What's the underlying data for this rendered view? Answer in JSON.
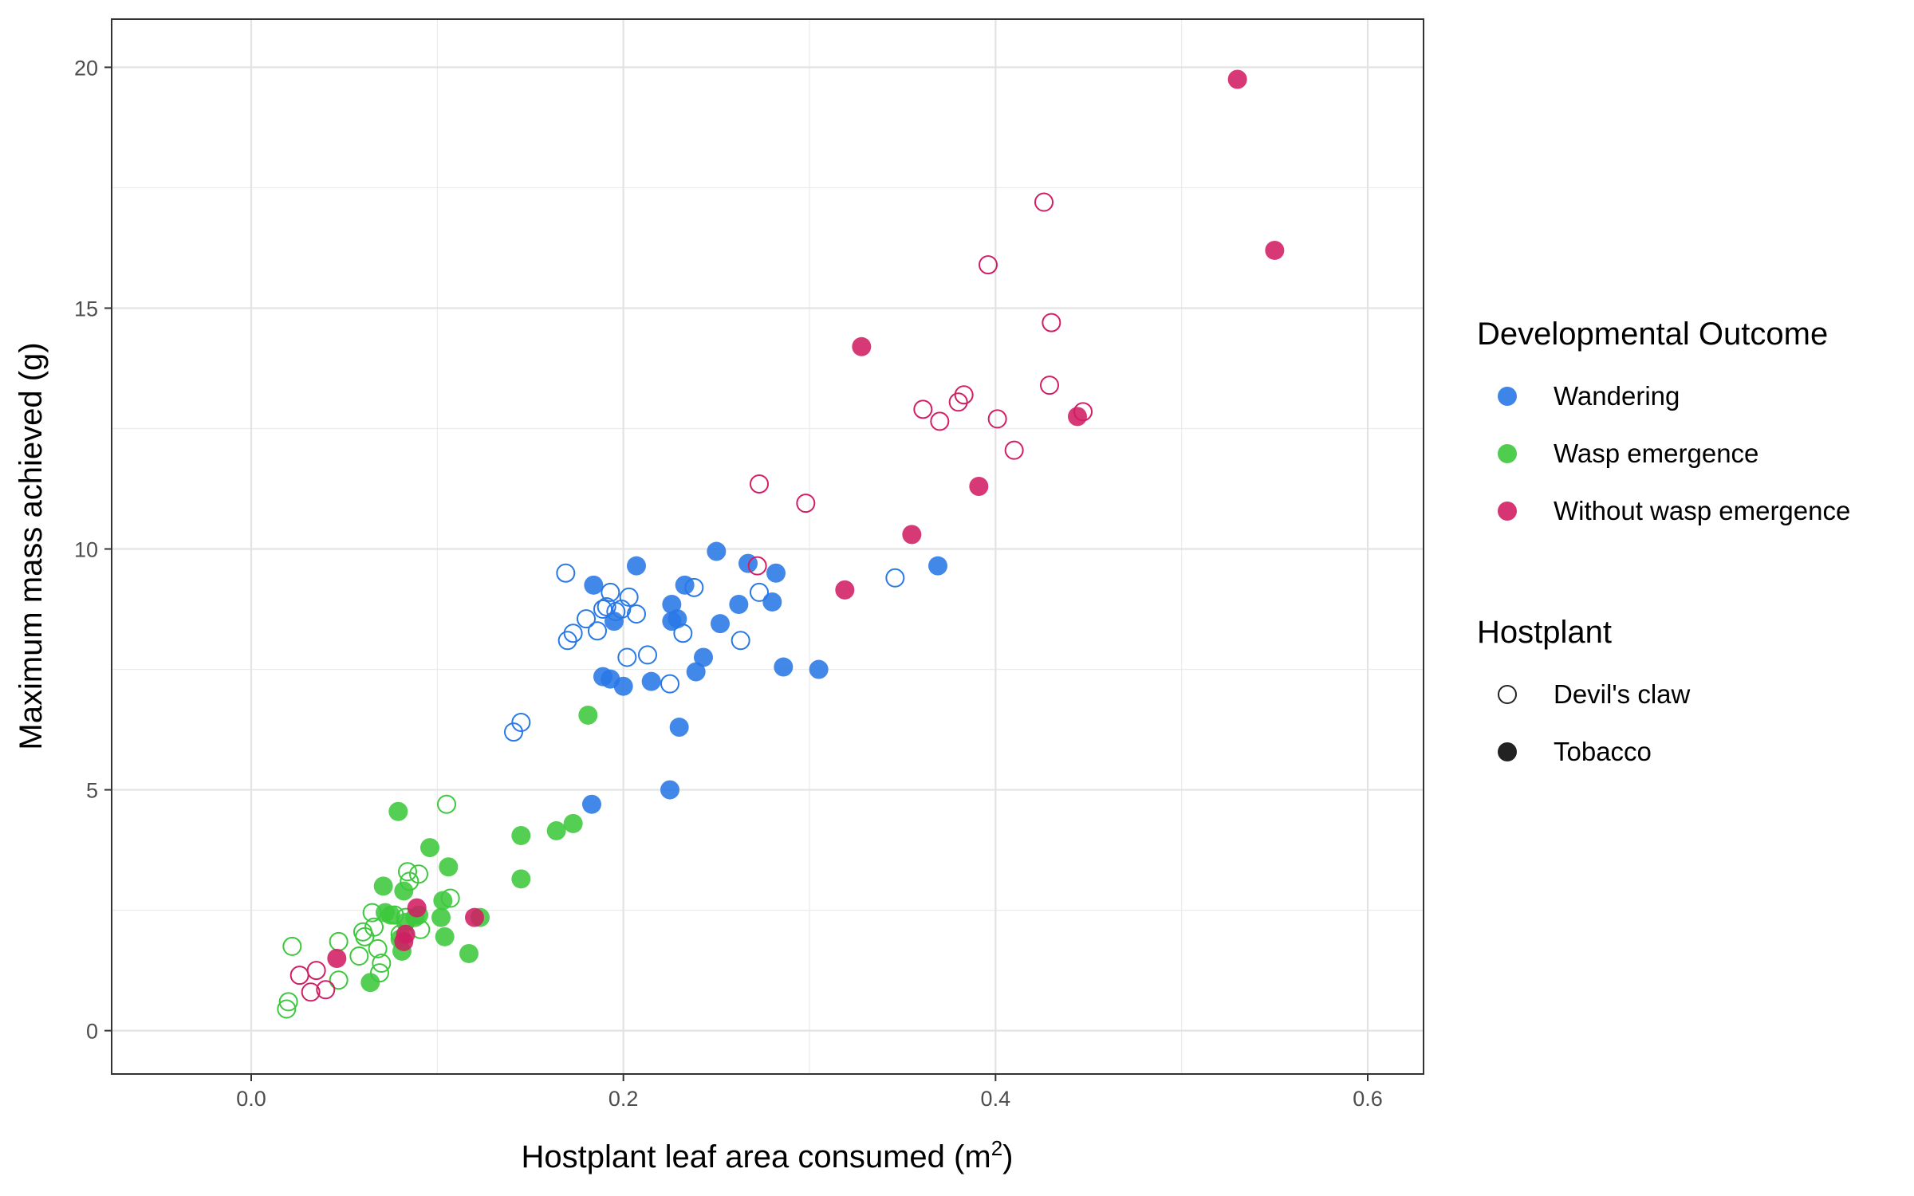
{
  "chart_data": {
    "type": "scatter",
    "xlabel": "Hostplant leaf area consumed (m",
    "xlabel_sup": "2",
    "xlabel_end": ")",
    "ylabel": "Maximum mass achieved (g)",
    "xlim": [
      -0.075,
      0.63
    ],
    "ylim": [
      -0.9,
      21
    ],
    "xticks": [
      0.0,
      0.2,
      0.4,
      0.6
    ],
    "xtick_labels": [
      "0.0",
      "0.2",
      "0.4",
      "0.6"
    ],
    "yticks": [
      0,
      5,
      10,
      15,
      20
    ],
    "ytick_labels": [
      "0",
      "5",
      "10",
      "15",
      "20"
    ],
    "grid": true,
    "legend_placement": "right",
    "legends": [
      {
        "title": "Developmental Outcome",
        "entries": [
          {
            "label": "Wandering",
            "color": "#2878e6"
          },
          {
            "label": "Wasp emergence",
            "color": "#3cc83c"
          },
          {
            "label": "Without wasp emergence",
            "color": "#d21e64"
          }
        ]
      },
      {
        "title": "Hostplant",
        "entries": [
          {
            "label": "Devil's claw",
            "marker": "open"
          },
          {
            "label": "Tobacco",
            "marker": "filled"
          }
        ]
      }
    ],
    "series": [
      {
        "name": "Wandering",
        "color": "#2878e6",
        "points": [
          [
            0.169,
            9.5,
            "open"
          ],
          [
            0.17,
            8.1,
            "open"
          ],
          [
            0.173,
            8.25,
            "open"
          ],
          [
            0.18,
            8.55,
            "open"
          ],
          [
            0.186,
            8.3,
            "open"
          ],
          [
            0.189,
            8.75,
            "open"
          ],
          [
            0.191,
            8.8,
            "open"
          ],
          [
            0.193,
            9.1,
            "open"
          ],
          [
            0.196,
            8.7,
            "open"
          ],
          [
            0.199,
            8.75,
            "open"
          ],
          [
            0.202,
            7.75,
            "open"
          ],
          [
            0.203,
            9.0,
            "open"
          ],
          [
            0.207,
            8.65,
            "open"
          ],
          [
            0.213,
            7.8,
            "open"
          ],
          [
            0.225,
            7.2,
            "open"
          ],
          [
            0.232,
            8.25,
            "open"
          ],
          [
            0.238,
            9.2,
            "open"
          ],
          [
            0.263,
            8.1,
            "open"
          ],
          [
            0.273,
            9.1,
            "open"
          ],
          [
            0.346,
            9.4,
            "open"
          ],
          [
            0.141,
            6.2,
            "open"
          ],
          [
            0.145,
            6.4,
            "open"
          ],
          [
            0.183,
            4.7,
            "filled"
          ],
          [
            0.184,
            9.25,
            "filled"
          ],
          [
            0.189,
            7.35,
            "filled"
          ],
          [
            0.193,
            7.3,
            "filled"
          ],
          [
            0.195,
            8.5,
            "filled"
          ],
          [
            0.2,
            7.15,
            "filled"
          ],
          [
            0.207,
            9.65,
            "filled"
          ],
          [
            0.215,
            7.25,
            "filled"
          ],
          [
            0.225,
            5.0,
            "filled"
          ],
          [
            0.226,
            8.85,
            "filled"
          ],
          [
            0.226,
            8.5,
            "filled"
          ],
          [
            0.229,
            8.55,
            "filled"
          ],
          [
            0.23,
            6.3,
            "filled"
          ],
          [
            0.233,
            9.25,
            "filled"
          ],
          [
            0.239,
            7.45,
            "filled"
          ],
          [
            0.243,
            7.75,
            "filled"
          ],
          [
            0.25,
            9.95,
            "filled"
          ],
          [
            0.252,
            8.45,
            "filled"
          ],
          [
            0.262,
            8.85,
            "filled"
          ],
          [
            0.267,
            9.7,
            "filled"
          ],
          [
            0.28,
            8.9,
            "filled"
          ],
          [
            0.282,
            9.5,
            "filled"
          ],
          [
            0.286,
            7.55,
            "filled"
          ],
          [
            0.305,
            7.5,
            "filled"
          ],
          [
            0.369,
            9.65,
            "filled"
          ]
        ]
      },
      {
        "name": "Wasp emergence",
        "color": "#3cc83c",
        "points": [
          [
            0.019,
            0.45,
            "open"
          ],
          [
            0.02,
            0.6,
            "open"
          ],
          [
            0.022,
            1.75,
            "open"
          ],
          [
            0.047,
            1.85,
            "open"
          ],
          [
            0.047,
            1.05,
            "open"
          ],
          [
            0.058,
            1.55,
            "open"
          ],
          [
            0.06,
            2.05,
            "open"
          ],
          [
            0.061,
            1.95,
            "open"
          ],
          [
            0.065,
            2.45,
            "open"
          ],
          [
            0.066,
            2.15,
            "open"
          ],
          [
            0.068,
            1.7,
            "open"
          ],
          [
            0.069,
            1.2,
            "open"
          ],
          [
            0.07,
            1.4,
            "open"
          ],
          [
            0.077,
            2.4,
            "open"
          ],
          [
            0.08,
            2.0,
            "open"
          ],
          [
            0.083,
            2.35,
            "open"
          ],
          [
            0.084,
            3.3,
            "open"
          ],
          [
            0.085,
            3.1,
            "open"
          ],
          [
            0.09,
            3.25,
            "open"
          ],
          [
            0.091,
            2.1,
            "open"
          ],
          [
            0.105,
            4.7,
            "open"
          ],
          [
            0.107,
            2.75,
            "open"
          ],
          [
            0.064,
            1.0,
            "filled"
          ],
          [
            0.071,
            3.0,
            "filled"
          ],
          [
            0.072,
            2.45,
            "filled"
          ],
          [
            0.075,
            2.4,
            "filled"
          ],
          [
            0.079,
            4.55,
            "filled"
          ],
          [
            0.08,
            1.9,
            "filled"
          ],
          [
            0.081,
            1.65,
            "filled"
          ],
          [
            0.082,
            2.9,
            "filled"
          ],
          [
            0.083,
            2.25,
            "filled"
          ],
          [
            0.088,
            2.35,
            "filled"
          ],
          [
            0.09,
            2.4,
            "filled"
          ],
          [
            0.096,
            3.8,
            "filled"
          ],
          [
            0.102,
            2.35,
            "filled"
          ],
          [
            0.103,
            2.7,
            "filled"
          ],
          [
            0.104,
            1.95,
            "filled"
          ],
          [
            0.106,
            3.4,
            "filled"
          ],
          [
            0.117,
            1.6,
            "filled"
          ],
          [
            0.123,
            2.35,
            "filled"
          ],
          [
            0.145,
            3.15,
            "filled"
          ],
          [
            0.145,
            4.05,
            "filled"
          ],
          [
            0.164,
            4.15,
            "filled"
          ],
          [
            0.173,
            4.3,
            "filled"
          ],
          [
            0.181,
            6.55,
            "filled"
          ]
        ]
      },
      {
        "name": "Without wasp emergence",
        "color": "#d21e64",
        "points": [
          [
            0.026,
            1.15,
            "open"
          ],
          [
            0.032,
            0.8,
            "open"
          ],
          [
            0.035,
            1.25,
            "open"
          ],
          [
            0.04,
            0.85,
            "open"
          ],
          [
            0.272,
            9.65,
            "open"
          ],
          [
            0.273,
            11.35,
            "open"
          ],
          [
            0.298,
            10.95,
            "open"
          ],
          [
            0.361,
            12.9,
            "open"
          ],
          [
            0.37,
            12.65,
            "open"
          ],
          [
            0.38,
            13.05,
            "open"
          ],
          [
            0.383,
            13.2,
            "open"
          ],
          [
            0.396,
            15.9,
            "open"
          ],
          [
            0.401,
            12.7,
            "open"
          ],
          [
            0.41,
            12.05,
            "open"
          ],
          [
            0.426,
            17.2,
            "open"
          ],
          [
            0.429,
            13.4,
            "open"
          ],
          [
            0.43,
            14.7,
            "open"
          ],
          [
            0.447,
            12.85,
            "open"
          ],
          [
            0.046,
            1.5,
            "filled"
          ],
          [
            0.082,
            1.85,
            "filled"
          ],
          [
            0.083,
            2.0,
            "filled"
          ],
          [
            0.089,
            2.55,
            "filled"
          ],
          [
            0.12,
            2.35,
            "filled"
          ],
          [
            0.319,
            9.15,
            "filled"
          ],
          [
            0.328,
            14.2,
            "filled"
          ],
          [
            0.355,
            10.3,
            "filled"
          ],
          [
            0.391,
            11.3,
            "filled"
          ],
          [
            0.444,
            12.75,
            "filled"
          ],
          [
            0.53,
            19.75,
            "filled"
          ],
          [
            0.55,
            16.2,
            "filled"
          ]
        ]
      }
    ]
  }
}
